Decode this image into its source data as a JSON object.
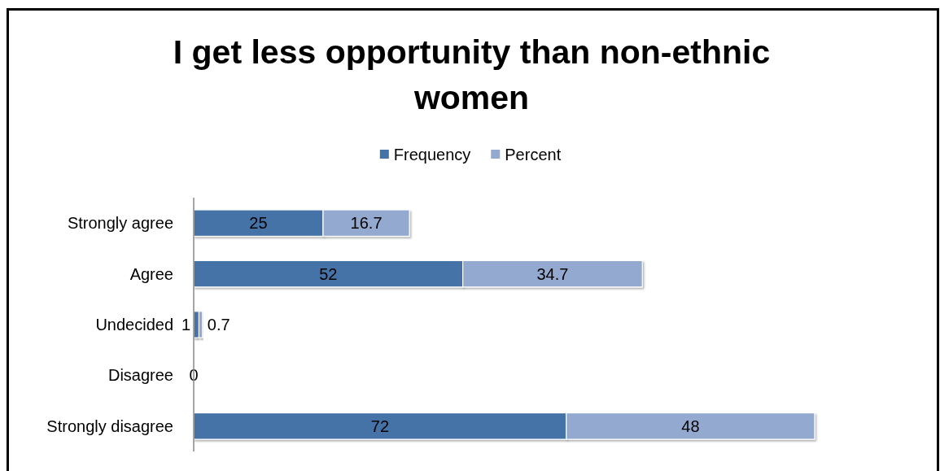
{
  "chart_data": {
    "type": "bar",
    "orientation": "horizontal",
    "stacked": true,
    "title": "I get less opportunity than non-ethnic women",
    "categories": [
      "Strongly agree",
      "Agree",
      "Undecided",
      "Disagree",
      "Strongly disagree"
    ],
    "series": [
      {
        "name": "Frequency",
        "color": "#4572a7",
        "values": [
          25,
          52,
          1,
          0,
          72
        ],
        "value_labels": [
          "25",
          "52",
          "1",
          "0",
          "72"
        ]
      },
      {
        "name": "Percent",
        "color": "#93a9cf",
        "values": [
          16.7,
          34.7,
          0.7,
          0,
          48
        ],
        "value_labels": [
          "16.7",
          "34.7",
          "0.7",
          null,
          "48"
        ]
      }
    ],
    "legend": "top",
    "tick_labels": "y"
  }
}
